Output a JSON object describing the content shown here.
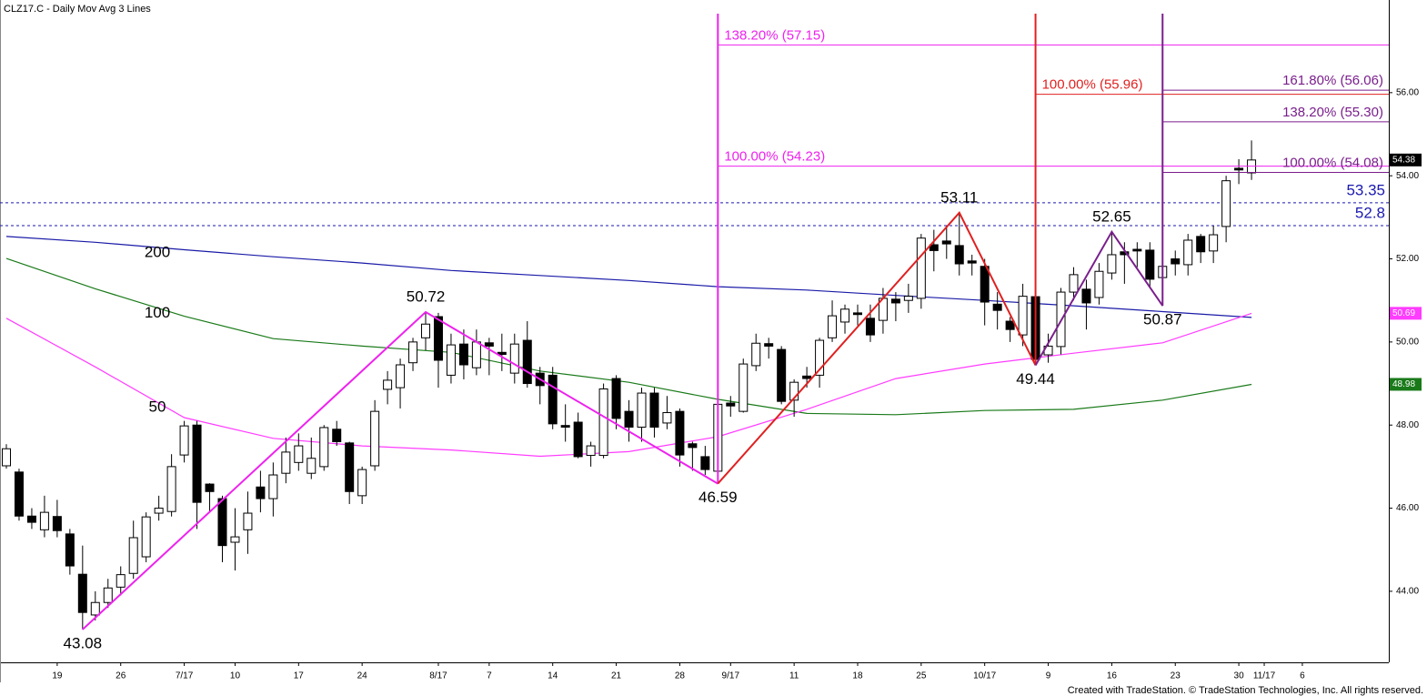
{
  "chart_data": {
    "type": "candlestick",
    "title": "CLZ17.C - Daily  Mov Avg 3 Lines",
    "footer": "Created with TradeStation. © TradeStation Technologies, Inc. All rights reserved.",
    "categories": [
      null,
      null,
      null,
      null,
      "19",
      null,
      null,
      null,
      null,
      "26",
      null,
      null,
      null,
      null,
      "7/17",
      null,
      null,
      null,
      "10",
      null,
      null,
      null,
      null,
      "17",
      null,
      null,
      null,
      null,
      "24",
      null,
      null,
      null,
      null,
      null,
      "8/17",
      null,
      null,
      null,
      "7",
      null,
      null,
      null,
      null,
      "14",
      null,
      null,
      null,
      null,
      "21",
      null,
      null,
      null,
      null,
      "28",
      null,
      null,
      null,
      "9/17",
      null,
      null,
      null,
      null,
      "11",
      null,
      null,
      null,
      null,
      "18",
      null,
      null,
      null,
      null,
      "25",
      null,
      null,
      null,
      null,
      "10/17",
      null,
      null,
      null,
      null,
      "9",
      null,
      null,
      null,
      null,
      "16",
      null,
      null,
      null,
      null,
      "23",
      null,
      null,
      null,
      null,
      "30",
      null,
      "11/17",
      null,
      null,
      "6",
      null
    ],
    "open": [
      47.02,
      46.87,
      45.81,
      45.48,
      45.8,
      45.38,
      44.41,
      43.43,
      43.73,
      44.1,
      44.43,
      44.83,
      45.88,
      45.92,
      47.28,
      48.0,
      46.58,
      46.23,
      45.18,
      45.48,
      46.51,
      46.23,
      46.84,
      47.1,
      46.84,
      47.0,
      47.9,
      47.57,
      46.3,
      47.02,
      48.86,
      48.9,
      49.5,
      50.1,
      50.61,
      49.2,
      49.95,
      49.38,
      49.98,
      49.75,
      49.25,
      50.04,
      49.25,
      49.2,
      47.99,
      48.07,
      47.27,
      47.27,
      49.12,
      48.33,
      47.95,
      48.77,
      48.05,
      48.33,
      47.55,
      47.24,
      46.89,
      48.53,
      48.33,
      49.43,
      49.96,
      49.82,
      48.6,
      49.18,
      49.2,
      50.1,
      50.48,
      50.7,
      50.57,
      50.52,
      51.03,
      51.0,
      51.05,
      52.34,
      52.43,
      52.32,
      51.95,
      51.82,
      50.91,
      50.5,
      50.17,
      51.09,
      49.69,
      49.89,
      51.2,
      51.27,
      51.07,
      51.66,
      52.17,
      52.23,
      52.21,
      51.55,
      52.0,
      51.86,
      52.54,
      52.19,
      52.78,
      54.18,
      54.07,
      null,
      null,
      null,
      null,
      null
    ],
    "high": [
      47.54,
      46.95,
      46.0,
      46.3,
      46.2,
      45.5,
      45.1,
      44.0,
      44.3,
      44.6,
      45.7,
      45.9,
      46.3,
      47.3,
      48.1,
      48.1,
      46.6,
      46.3,
      46.0,
      46.4,
      46.9,
      47.1,
      47.7,
      47.8,
      47.7,
      48.0,
      48.1,
      47.6,
      47.0,
      48.6,
      49.3,
      49.6,
      50.1,
      50.72,
      50.7,
      50.2,
      50.3,
      50.3,
      50.1,
      50.2,
      50.2,
      50.5,
      49.4,
      49.4,
      48.5,
      48.3,
      47.6,
      49.0,
      49.2,
      48.6,
      48.9,
      48.9,
      48.7,
      48.4,
      47.6,
      47.5,
      48.6,
      48.7,
      49.6,
      50.2,
      50.1,
      49.9,
      49.1,
      49.4,
      50.1,
      51.0,
      50.9,
      50.9,
      50.9,
      51.3,
      51.2,
      51.4,
      52.6,
      52.7,
      52.8,
      53.11,
      52.1,
      52.0,
      51.2,
      50.6,
      51.4,
      51.2,
      50.2,
      51.3,
      51.8,
      51.5,
      51.9,
      52.65,
      52.4,
      52.4,
      52.4,
      51.9,
      52.2,
      52.6,
      52.6,
      52.8,
      54.0,
      54.4,
      54.85,
      null,
      null,
      null,
      null,
      null
    ],
    "low": [
      46.95,
      45.7,
      45.5,
      45.3,
      45.3,
      44.4,
      43.08,
      43.3,
      43.6,
      43.9,
      44.3,
      44.7,
      45.7,
      45.8,
      47.1,
      45.5,
      45.9,
      44.7,
      44.5,
      44.9,
      45.9,
      45.8,
      46.6,
      46.9,
      46.7,
      46.9,
      47.5,
      46.1,
      46.1,
      46.9,
      48.5,
      48.4,
      49.3,
      49.8,
      48.9,
      49.0,
      49.1,
      49.2,
      49.2,
      49.3,
      49.0,
      48.9,
      48.5,
      47.9,
      47.6,
      47.2,
      47.0,
      47.2,
      47.9,
      47.6,
      47.6,
      47.7,
      47.9,
      47.0,
      46.9,
      46.8,
      46.59,
      48.2,
      48.3,
      49.3,
      49.6,
      48.5,
      48.2,
      48.9,
      48.9,
      50.0,
      50.2,
      50.4,
      50.0,
      50.2,
      50.5,
      50.7,
      50.8,
      51.7,
      52.0,
      51.6,
      51.6,
      50.4,
      50.3,
      50.0,
      49.9,
      49.44,
      49.5,
      49.7,
      51.0,
      50.3,
      50.9,
      51.5,
      51.4,
      51.8,
      51.3,
      50.87,
      51.6,
      51.6,
      51.9,
      51.9,
      52.4,
      53.8,
      53.9,
      null,
      null,
      null,
      null,
      null
    ],
    "close": [
      47.43,
      45.81,
      45.66,
      45.9,
      45.46,
      44.61,
      43.49,
      43.73,
      44.08,
      44.4,
      45.29,
      45.79,
      46.0,
      47.0,
      47.98,
      46.14,
      46.4,
      45.1,
      45.31,
      45.88,
      46.23,
      46.8,
      47.35,
      47.5,
      47.2,
      47.94,
      47.6,
      46.4,
      46.93,
      48.33,
      49.08,
      49.45,
      50.0,
      50.43,
      49.56,
      49.93,
      49.45,
      50.0,
      49.9,
      49.7,
      49.95,
      49.0,
      48.95,
      48.03,
      47.95,
      47.24,
      47.5,
      48.87,
      48.16,
      47.95,
      48.77,
      47.95,
      48.3,
      47.28,
      47.46,
      46.93,
      48.5,
      48.46,
      49.47,
      49.97,
      49.9,
      48.57,
      49.03,
      49.12,
      50.04,
      50.63,
      50.79,
      50.66,
      50.17,
      51.05,
      50.94,
      51.1,
      52.5,
      52.2,
      52.36,
      51.88,
      51.9,
      50.96,
      50.76,
      50.3,
      51.1,
      49.58,
      49.9,
      51.2,
      51.62,
      50.94,
      51.7,
      52.1,
      52.1,
      52.19,
      51.51,
      51.82,
      51.88,
      52.45,
      52.17,
      52.58,
      53.88,
      54.14,
      54.38,
      null,
      null,
      null,
      null,
      null
    ],
    "moving_averages": [
      {
        "name": "200",
        "color": "#1a1aa8",
        "x": [
          0,
          7,
          14,
          21,
          28,
          35,
          42,
          49,
          56,
          63,
          70,
          77,
          84,
          91,
          98
        ],
        "values": [
          52.54,
          52.4,
          52.22,
          52.05,
          51.9,
          51.72,
          51.6,
          51.48,
          51.33,
          51.25,
          51.12,
          51.0,
          50.87,
          50.73,
          50.59
        ]
      },
      {
        "name": "100",
        "color": "#1a7a1a",
        "x": [
          0,
          7,
          14,
          21,
          28,
          35,
          42,
          49,
          56,
          63,
          70,
          77,
          84,
          91,
          98
        ],
        "values": [
          52.01,
          51.28,
          50.62,
          50.08,
          49.9,
          49.75,
          49.3,
          49.03,
          48.62,
          48.28,
          48.25,
          48.35,
          48.38,
          48.6,
          48.98
        ]
      },
      {
        "name": "50",
        "color": "#ff3cff",
        "x": [
          0,
          7,
          14,
          21,
          28,
          35,
          42,
          49,
          56,
          63,
          70,
          77,
          84,
          91,
          98
        ],
        "values": [
          50.57,
          49.4,
          48.18,
          47.68,
          47.5,
          47.4,
          47.25,
          47.36,
          47.72,
          48.38,
          49.12,
          49.47,
          49.73,
          49.98,
          50.69
        ]
      }
    ],
    "swings": [
      {
        "color": "#ee22ee",
        "points": [
          {
            "index": 6,
            "value": 43.08
          },
          {
            "index": 33,
            "value": 50.72
          },
          {
            "index": 56,
            "value": 46.59
          }
        ],
        "levels": [
          {
            "value": 57.15,
            "label": "138.20% (57.15)"
          },
          {
            "value": 54.23,
            "label": "100.00% (54.23)"
          }
        ]
      },
      {
        "color": "#e02020",
        "points": [
          {
            "index": 56,
            "value": 46.59
          },
          {
            "index": 75,
            "value": 53.11
          },
          {
            "index": 81,
            "value": 49.44
          }
        ],
        "levels": [
          {
            "value": 55.96,
            "label": "100.00% (55.96)"
          }
        ]
      },
      {
        "color": "#7a1f8c",
        "points": [
          {
            "index": 81,
            "value": 49.44
          },
          {
            "index": 87,
            "value": 52.65
          },
          {
            "index": 91,
            "value": 50.87
          }
        ],
        "levels": [
          {
            "value": 56.06,
            "label": "161.80% (56.06)"
          },
          {
            "value": 55.3,
            "label": "138.20% (55.30)"
          },
          {
            "value": 54.08,
            "label": "100.00% (54.08)"
          }
        ]
      }
    ],
    "reference_lines": [
      {
        "value": 53.35,
        "color": "#1a1ab0"
      },
      {
        "value": 52.8,
        "color": "#1a1ab0"
      }
    ],
    "ylim": [
      42.29,
      58.23
    ],
    "yticks": [
      {
        "value": 44,
        "label": "44.00"
      },
      {
        "value": 46,
        "label": "46.00"
      },
      {
        "value": 48,
        "label": "48.00"
      },
      {
        "value": 50,
        "label": "50.00"
      },
      {
        "value": 52,
        "label": "52.00"
      },
      {
        "value": 54,
        "label": "54.00"
      },
      {
        "value": 56,
        "label": "56.00"
      }
    ]
  }
}
